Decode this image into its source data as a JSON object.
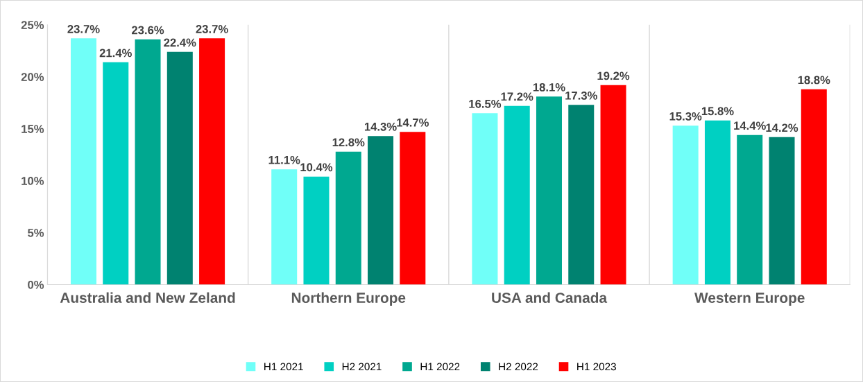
{
  "chart_data": {
    "type": "bar",
    "categories": [
      "Australia and New Zeland",
      "Northern Europe",
      "USA and Canada",
      "Western Europe"
    ],
    "series": [
      {
        "name": "H1 2021",
        "color": "#70fff8",
        "values": [
          23.7,
          11.1,
          16.5,
          15.3
        ],
        "value_labels": [
          "23.7%",
          "11.1%",
          "16.5%",
          "15.3%"
        ]
      },
      {
        "name": "H2 2021",
        "color": "#00d0c2",
        "values": [
          21.4,
          10.4,
          17.2,
          15.8
        ],
        "value_labels": [
          "21.4%",
          "10.4%",
          "17.2%",
          "15.8%"
        ]
      },
      {
        "name": "H1 2022",
        "color": "#00a890",
        "values": [
          23.6,
          12.8,
          18.1,
          14.4
        ],
        "value_labels": [
          "23.6%",
          "12.8%",
          "18.1%",
          "14.4%"
        ]
      },
      {
        "name": "H2 2022",
        "color": "#008270",
        "values": [
          22.4,
          14.3,
          17.3,
          14.2
        ],
        "value_labels": [
          "22.4%",
          "14.3%",
          "17.3%",
          "14.2%"
        ]
      },
      {
        "name": "H1 2023",
        "color": "#ff0000",
        "values": [
          23.7,
          14.7,
          19.2,
          18.8
        ],
        "value_labels": [
          "23.7%",
          "14.7%",
          "19.2%",
          "18.8%"
        ]
      }
    ],
    "ylim": [
      0,
      25
    ],
    "yticks": [
      {
        "value": 0,
        "label": "0%"
      },
      {
        "value": 5,
        "label": "5%"
      },
      {
        "value": 10,
        "label": "10%"
      },
      {
        "value": 15,
        "label": "15%"
      },
      {
        "value": 20,
        "label": "20%"
      },
      {
        "value": 25,
        "label": "25%"
      }
    ],
    "grid": "x",
    "legend": "bottom"
  }
}
